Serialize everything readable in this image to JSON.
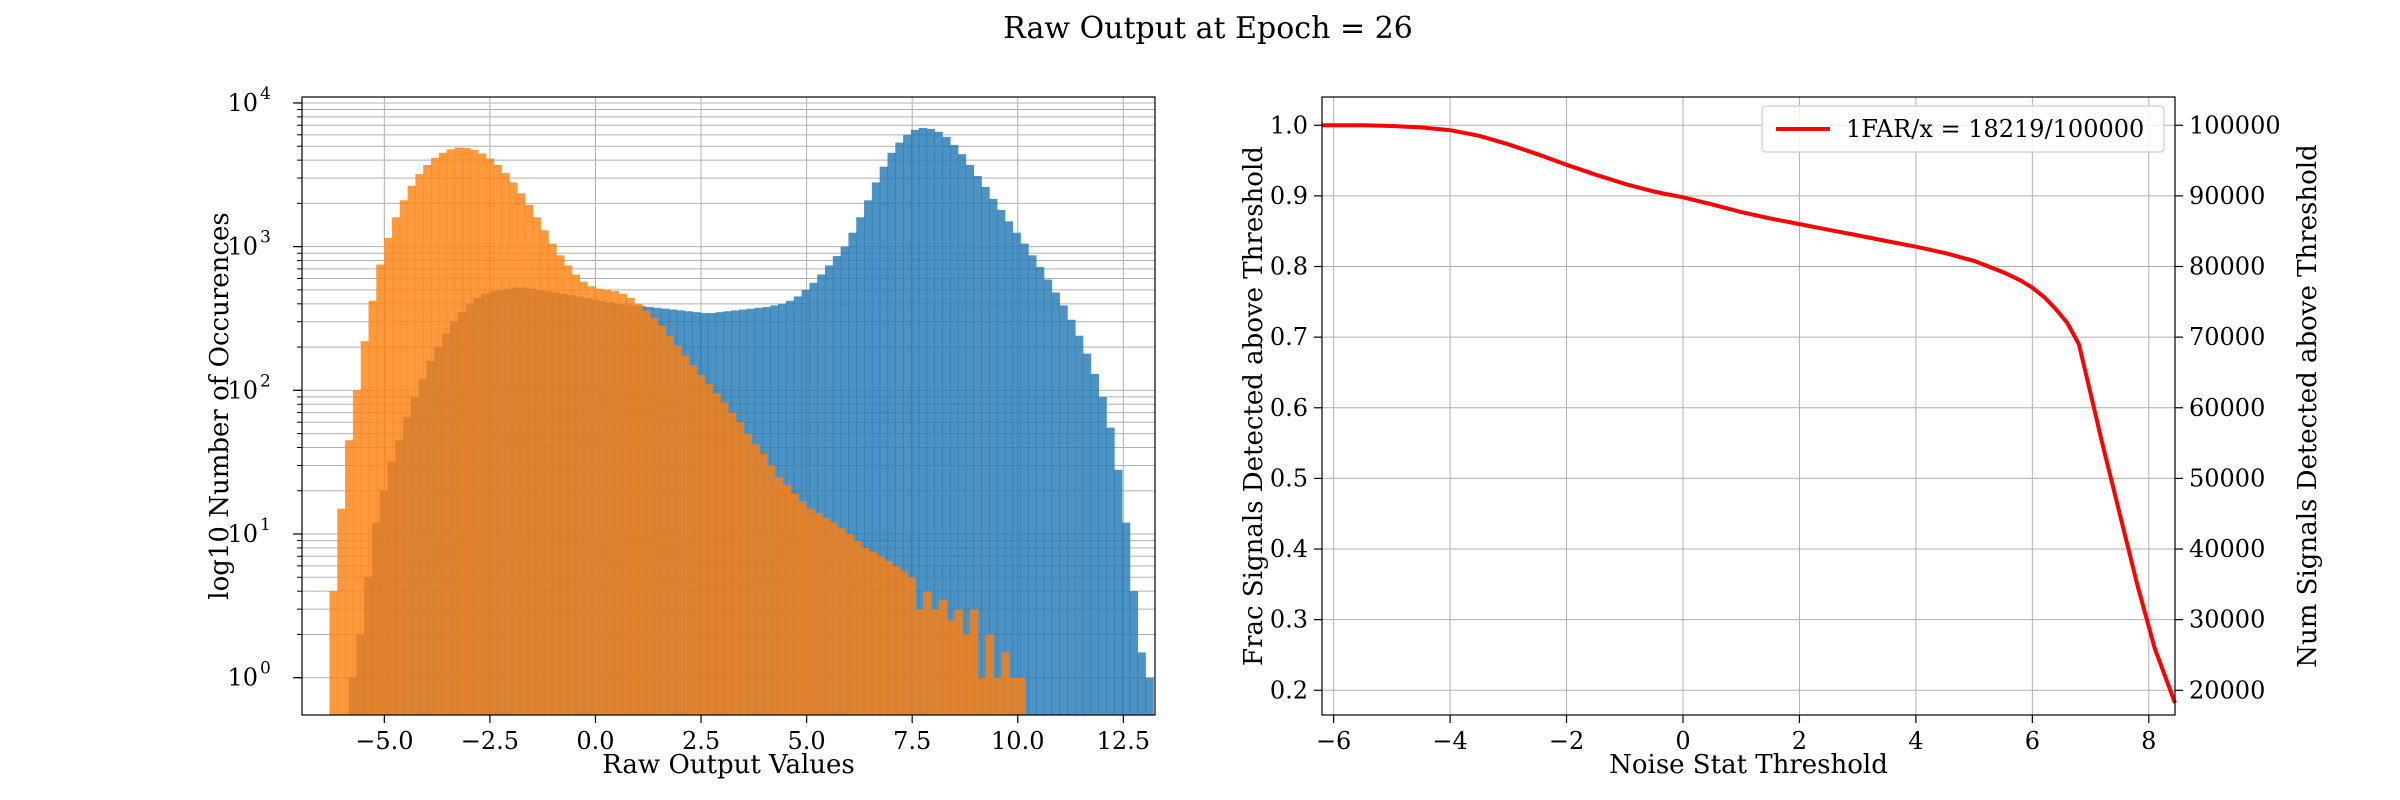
{
  "figure": {
    "title": "Raw Output at Epoch = 26"
  },
  "chart_data": [
    {
      "type": "bar",
      "subtype": "histogram",
      "title": "",
      "xlabel": "Raw Output Values",
      "ylabel": "log10 Number of Occurences",
      "yscale": "log",
      "xlim": [
        -6.95,
        13.25
      ],
      "ylim": [
        0.55,
        11000
      ],
      "grid": true,
      "xticks": [
        -5.0,
        -2.5,
        0.0,
        2.5,
        5.0,
        7.5,
        10.0,
        12.5
      ],
      "xtick_labels": [
        "−5.0",
        "−2.5",
        "0.0",
        "2.5",
        "5.0",
        "7.5",
        "10.0",
        "12.5"
      ],
      "yticks": [
        1,
        10,
        100,
        1000,
        10000
      ],
      "ytick_base": "10",
      "ytick_exponents": [
        "0",
        "1",
        "2",
        "3",
        "4"
      ],
      "series": [
        {
          "color": "#1f77b4",
          "opacity": 0.8,
          "bin_start": -5.85,
          "bin_width": 0.185,
          "values": [
            1,
            2,
            5,
            12,
            20,
            32,
            45,
            65,
            90,
            120,
            160,
            200,
            250,
            300,
            350,
            400,
            440,
            470,
            490,
            500,
            510,
            520,
            520,
            510,
            500,
            490,
            480,
            470,
            460,
            450,
            440,
            430,
            420,
            410,
            400,
            395,
            390,
            385,
            380,
            375,
            370,
            365,
            360,
            355,
            350,
            345,
            345,
            350,
            355,
            360,
            365,
            370,
            375,
            380,
            390,
            400,
            420,
            450,
            500,
            560,
            640,
            740,
            860,
            1000,
            1250,
            1600,
            2100,
            2800,
            3600,
            4500,
            5300,
            6000,
            6500,
            6700,
            6600,
            6300,
            5800,
            5100,
            4400,
            3700,
            3100,
            2600,
            2150,
            1800,
            1500,
            1250,
            1050,
            870,
            720,
            590,
            480,
            390,
            310,
            240,
            180,
            130,
            90,
            55,
            28,
            12,
            4,
            1.5,
            1
          ]
        },
        {
          "color": "#ff7f0e",
          "opacity": 0.8,
          "bin_start": -6.3,
          "bin_width": 0.185,
          "values": [
            4,
            15,
            45,
            100,
            220,
            420,
            750,
            1150,
            1600,
            2100,
            2650,
            3200,
            3700,
            4150,
            4500,
            4750,
            4900,
            4850,
            4700,
            4450,
            4100,
            3700,
            3250,
            2800,
            2350,
            1950,
            1600,
            1300,
            1050,
            870,
            740,
            640,
            570,
            530,
            510,
            500,
            490,
            470,
            440,
            400,
            360,
            320,
            280,
            240,
            205,
            175,
            150,
            128,
            110,
            95,
            82,
            70,
            60,
            50,
            42,
            36,
            30,
            25,
            22,
            19,
            17,
            15,
            14,
            13,
            12,
            11,
            10,
            9,
            8,
            7.5,
            7,
            6.5,
            6,
            5.5,
            5,
            3,
            4,
            3,
            3.5,
            2.5,
            3,
            2,
            3,
            1,
            2,
            1,
            1.5,
            1,
            1
          ]
        }
      ]
    },
    {
      "type": "line",
      "title": "",
      "xlabel": "Noise Stat Threshold",
      "ylabel": "Frac Signals Detected above Threshold",
      "y2label": "Num Signals Detected above Threshold",
      "xlim": [
        -6.2,
        8.45
      ],
      "ylim": [
        0.165,
        1.04
      ],
      "y2lim": [
        16500,
        104000
      ],
      "grid": true,
      "legend": "top-right",
      "xticks": [
        -6,
        -4,
        -2,
        0,
        2,
        4,
        6,
        8
      ],
      "xtick_labels": [
        "−6",
        "−4",
        "−2",
        "0",
        "2",
        "4",
        "6",
        "8"
      ],
      "yticks": [
        0.2,
        0.3,
        0.4,
        0.5,
        0.6,
        0.7,
        0.8,
        0.9,
        1.0
      ],
      "ytick_labels": [
        "0.2",
        "0.3",
        "0.4",
        "0.5",
        "0.6",
        "0.7",
        "0.8",
        "0.9",
        "1.0"
      ],
      "y2ticks": [
        20000,
        30000,
        40000,
        50000,
        60000,
        70000,
        80000,
        90000,
        100000
      ],
      "y2tick_labels": [
        "20000",
        "30000",
        "40000",
        "50000",
        "60000",
        "70000",
        "80000",
        "90000",
        "100000"
      ],
      "series": [
        {
          "name": "1FAR/x = 18219/100000",
          "color": "#ff0000",
          "x": [
            -6.2,
            -5.5,
            -5.0,
            -4.5,
            -4.0,
            -3.5,
            -3.0,
            -2.5,
            -2.0,
            -1.5,
            -1.0,
            -0.5,
            0.0,
            0.5,
            1.0,
            1.5,
            2.0,
            2.5,
            3.0,
            3.5,
            4.0,
            4.5,
            5.0,
            5.5,
            5.8,
            6.0,
            6.2,
            6.4,
            6.6,
            6.8,
            7.0,
            7.2,
            7.5,
            7.8,
            8.1,
            8.45
          ],
          "y": [
            1.0,
            1.0,
            0.999,
            0.997,
            0.993,
            0.985,
            0.973,
            0.959,
            0.944,
            0.93,
            0.917,
            0.906,
            0.898,
            0.888,
            0.877,
            0.868,
            0.86,
            0.852,
            0.844,
            0.836,
            0.828,
            0.819,
            0.808,
            0.792,
            0.78,
            0.77,
            0.757,
            0.74,
            0.72,
            0.69,
            0.62,
            0.55,
            0.45,
            0.35,
            0.26,
            0.182
          ]
        }
      ]
    }
  ]
}
